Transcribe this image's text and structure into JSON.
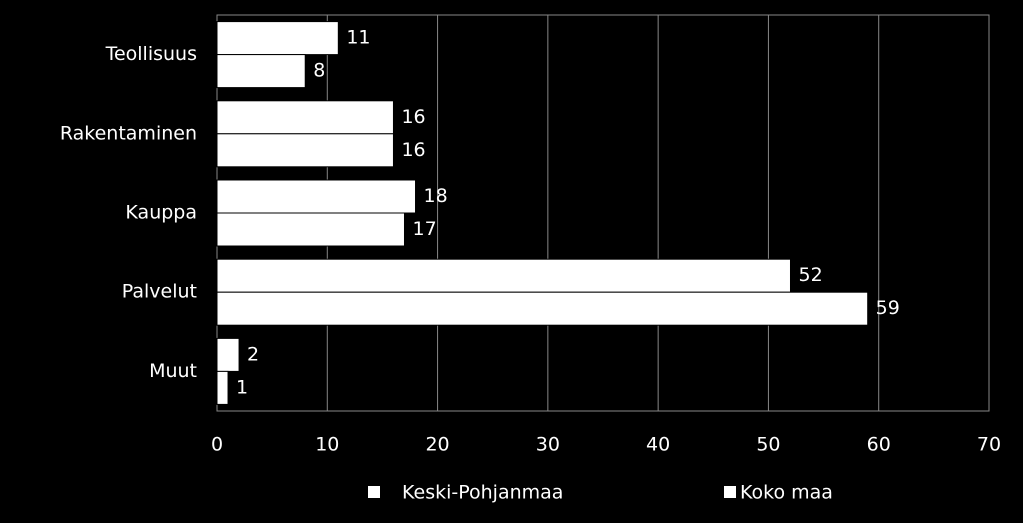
{
  "chart_data": {
    "type": "bar",
    "orientation": "horizontal",
    "categories": [
      "Teollisuus",
      "Rakentaminen",
      "Kauppa",
      "Palvelut",
      "Muut"
    ],
    "series": [
      {
        "name": "Keski-Pohjanmaa",
        "color": "#ffffff",
        "values": [
          11,
          16,
          18,
          52,
          2
        ]
      },
      {
        "name": "Koko maa",
        "color": "#ffffff",
        "values": [
          8,
          16,
          17,
          59,
          1
        ]
      }
    ],
    "xlim": [
      0,
      70
    ],
    "xticks": [
      0,
      10,
      20,
      30,
      40,
      50,
      60,
      70
    ],
    "grid": true,
    "legend": "bottom"
  }
}
